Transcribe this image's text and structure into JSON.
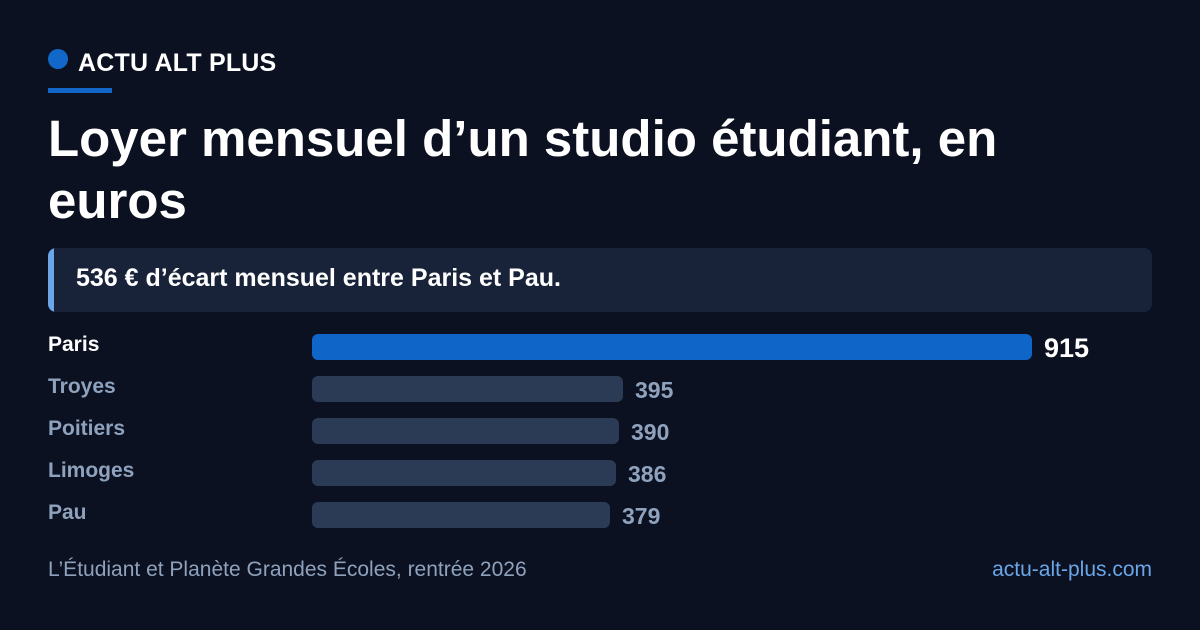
{
  "brand": {
    "name": "ACTU ALT PLUS"
  },
  "colors": {
    "background": "#0b1120",
    "accent": "#1268c9",
    "highlight_bar": "#0f66c8",
    "bar": "#2c3b55",
    "callout_bg": "#18233a",
    "callout_accent": "#6aa6e8",
    "muted_text": "#8fa2bd",
    "link": "#6aa6e8"
  },
  "callout": {
    "text": "536 € d’écart mensuel entre Paris et Pau."
  },
  "chart_data": {
    "type": "bar",
    "orientation": "horizontal",
    "title": "Loyer mensuel d’un studio étudiant, en euros",
    "categories": [
      "Paris",
      "Troyes",
      "Poitiers",
      "Limoges",
      "Pau"
    ],
    "values": [
      915,
      395,
      390,
      386,
      379
    ],
    "highlight": "Paris",
    "xlabel": "",
    "ylabel": "",
    "grid": false
  },
  "footer": {
    "source": "L’Étudiant et Planète Grandes Écoles, rentrée 2026",
    "site": "actu-alt-plus.com"
  }
}
